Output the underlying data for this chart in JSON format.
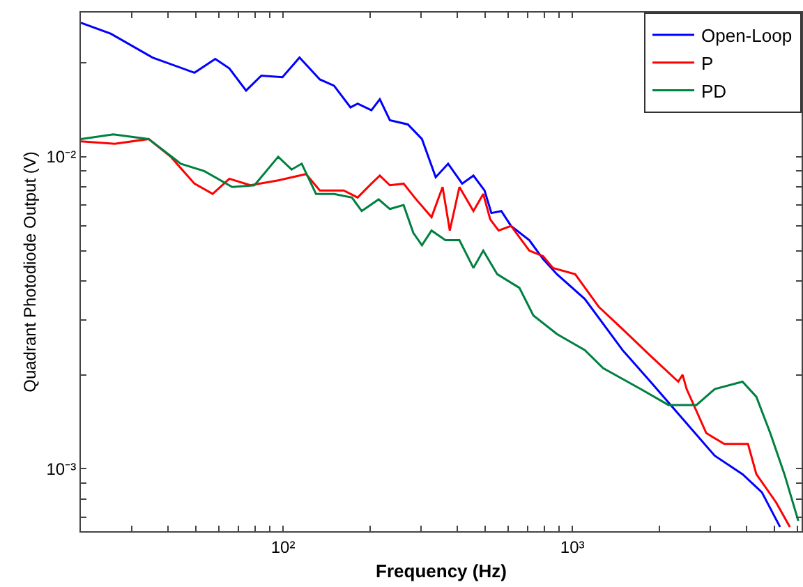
{
  "chart_data": {
    "type": "line",
    "xlabel": "Frequency (Hz)",
    "ylabel": "Quadrant Photodiode Output (V)",
    "log": "xy",
    "grid": false,
    "legend": "top right",
    "marker": "none",
    "line_style": "solid",
    "xlim": [
      20,
      6200
    ],
    "ylim": [
      0.00063,
      0.029
    ],
    "xticks": [
      {
        "value": 30,
        "label": null
      },
      {
        "value": 40,
        "label": null
      },
      {
        "value": 50,
        "label": null
      },
      {
        "value": 60,
        "label": null
      },
      {
        "value": 70,
        "label": null
      },
      {
        "value": 80,
        "label": null
      },
      {
        "value": 90,
        "label": null
      },
      {
        "value": 100,
        "label": "10²"
      },
      {
        "value": 200,
        "label": null
      },
      {
        "value": 300,
        "label": null
      },
      {
        "value": 400,
        "label": null
      },
      {
        "value": 500,
        "label": null
      },
      {
        "value": 600,
        "label": null
      },
      {
        "value": 700,
        "label": null
      },
      {
        "value": 800,
        "label": null
      },
      {
        "value": 900,
        "label": null
      },
      {
        "value": 1000,
        "label": "10³"
      },
      {
        "value": 2000,
        "label": null
      },
      {
        "value": 3000,
        "label": null
      },
      {
        "value": 4000,
        "label": null
      },
      {
        "value": 5000,
        "label": null
      },
      {
        "value": 6000,
        "label": null
      }
    ],
    "yticks": [
      {
        "value": 0.0007,
        "label": null
      },
      {
        "value": 0.0008,
        "label": null
      },
      {
        "value": 0.0009,
        "label": null
      },
      {
        "value": 0.001,
        "label": "10⁻³"
      },
      {
        "value": 0.002,
        "label": null
      },
      {
        "value": 0.003,
        "label": null
      },
      {
        "value": 0.004,
        "label": null
      },
      {
        "value": 0.005,
        "label": null
      },
      {
        "value": 0.006,
        "label": null
      },
      {
        "value": 0.007,
        "label": null
      },
      {
        "value": 0.008,
        "label": null
      },
      {
        "value": 0.009,
        "label": null
      },
      {
        "value": 0.01,
        "label": "10⁻²"
      },
      {
        "value": 0.02,
        "label": null
      }
    ],
    "series": [
      {
        "name": "Open-Loop",
        "color": "#0000ff",
        "x": [
          20,
          25.4,
          35.4,
          49.4,
          58.3,
          65.2,
          74.5,
          84.1,
          99.5,
          114,
          134,
          150,
          171,
          181,
          202,
          216,
          234,
          270,
          302,
          337,
          372,
          416,
          455,
          497,
          525,
          568,
          614,
          710,
          792,
          885,
          1104,
          1491,
          1862,
          2323,
          3105,
          3873,
          4519,
          5224
        ],
        "values": [
          0.0269,
          0.0248,
          0.0208,
          0.0186,
          0.0206,
          0.0192,
          0.0163,
          0.0182,
          0.018,
          0.0208,
          0.0177,
          0.0169,
          0.0144,
          0.0148,
          0.0141,
          0.0153,
          0.0131,
          0.0127,
          0.0114,
          0.0086,
          0.0095,
          0.0082,
          0.0087,
          0.0078,
          0.0066,
          0.0067,
          0.006,
          0.0054,
          0.0047,
          0.0042,
          0.0035,
          0.0024,
          0.0019,
          0.0015,
          0.0011,
          0.00096,
          0.00084,
          0.00065
        ]
      },
      {
        "name": "P",
        "color": "#ff0000",
        "x": [
          20,
          26.2,
          34.3,
          40.9,
          49.4,
          57.1,
          65.2,
          77.1,
          96.2,
          120,
          134,
          162,
          181,
          202,
          216,
          234,
          261,
          285,
          326,
          356,
          377,
          407,
          455,
          492,
          520,
          556,
          614,
          710,
          792,
          857,
          1023,
          1235,
          1491,
          1862,
          2323,
          2404,
          2483,
          2904,
          3350,
          4046,
          4325,
          5058,
          5649
        ],
        "values": [
          0.0112,
          0.011,
          0.0114,
          0.01,
          0.0082,
          0.0076,
          0.0085,
          0.0081,
          0.0084,
          0.0088,
          0.0078,
          0.0078,
          0.0074,
          0.0082,
          0.0087,
          0.0081,
          0.0082,
          0.0074,
          0.0064,
          0.008,
          0.0058,
          0.008,
          0.0067,
          0.0076,
          0.0063,
          0.0058,
          0.006,
          0.005,
          0.0048,
          0.0044,
          0.0042,
          0.0033,
          0.0028,
          0.0023,
          0.0019,
          0.002,
          0.0018,
          0.0013,
          0.0012,
          0.0012,
          0.00096,
          0.00078,
          0.00065
        ]
      },
      {
        "name": "PD",
        "color": "#008040",
        "x": [
          20,
          25.9,
          34.3,
          44.3,
          53.4,
          66.7,
          79.6,
          96.2,
          107,
          116,
          130,
          150,
          173,
          187,
          214,
          234,
          261,
          282,
          302,
          326,
          364,
          407,
          455,
          492,
          550,
          656,
          733,
          885,
          1104,
          1277,
          1722,
          2148,
          2685,
          3105,
          3873,
          4325,
          4831,
          5408,
          6039
        ],
        "values": [
          0.0114,
          0.0118,
          0.0114,
          0.0095,
          0.009,
          0.008,
          0.0081,
          0.01,
          0.0091,
          0.0095,
          0.0076,
          0.0076,
          0.0074,
          0.0067,
          0.0073,
          0.0068,
          0.007,
          0.0057,
          0.0052,
          0.0058,
          0.0054,
          0.0054,
          0.0044,
          0.005,
          0.0042,
          0.0038,
          0.0031,
          0.0027,
          0.0024,
          0.0021,
          0.0018,
          0.0016,
          0.0016,
          0.0018,
          0.0019,
          0.0017,
          0.0013,
          0.00096,
          0.00068
        ]
      }
    ]
  }
}
